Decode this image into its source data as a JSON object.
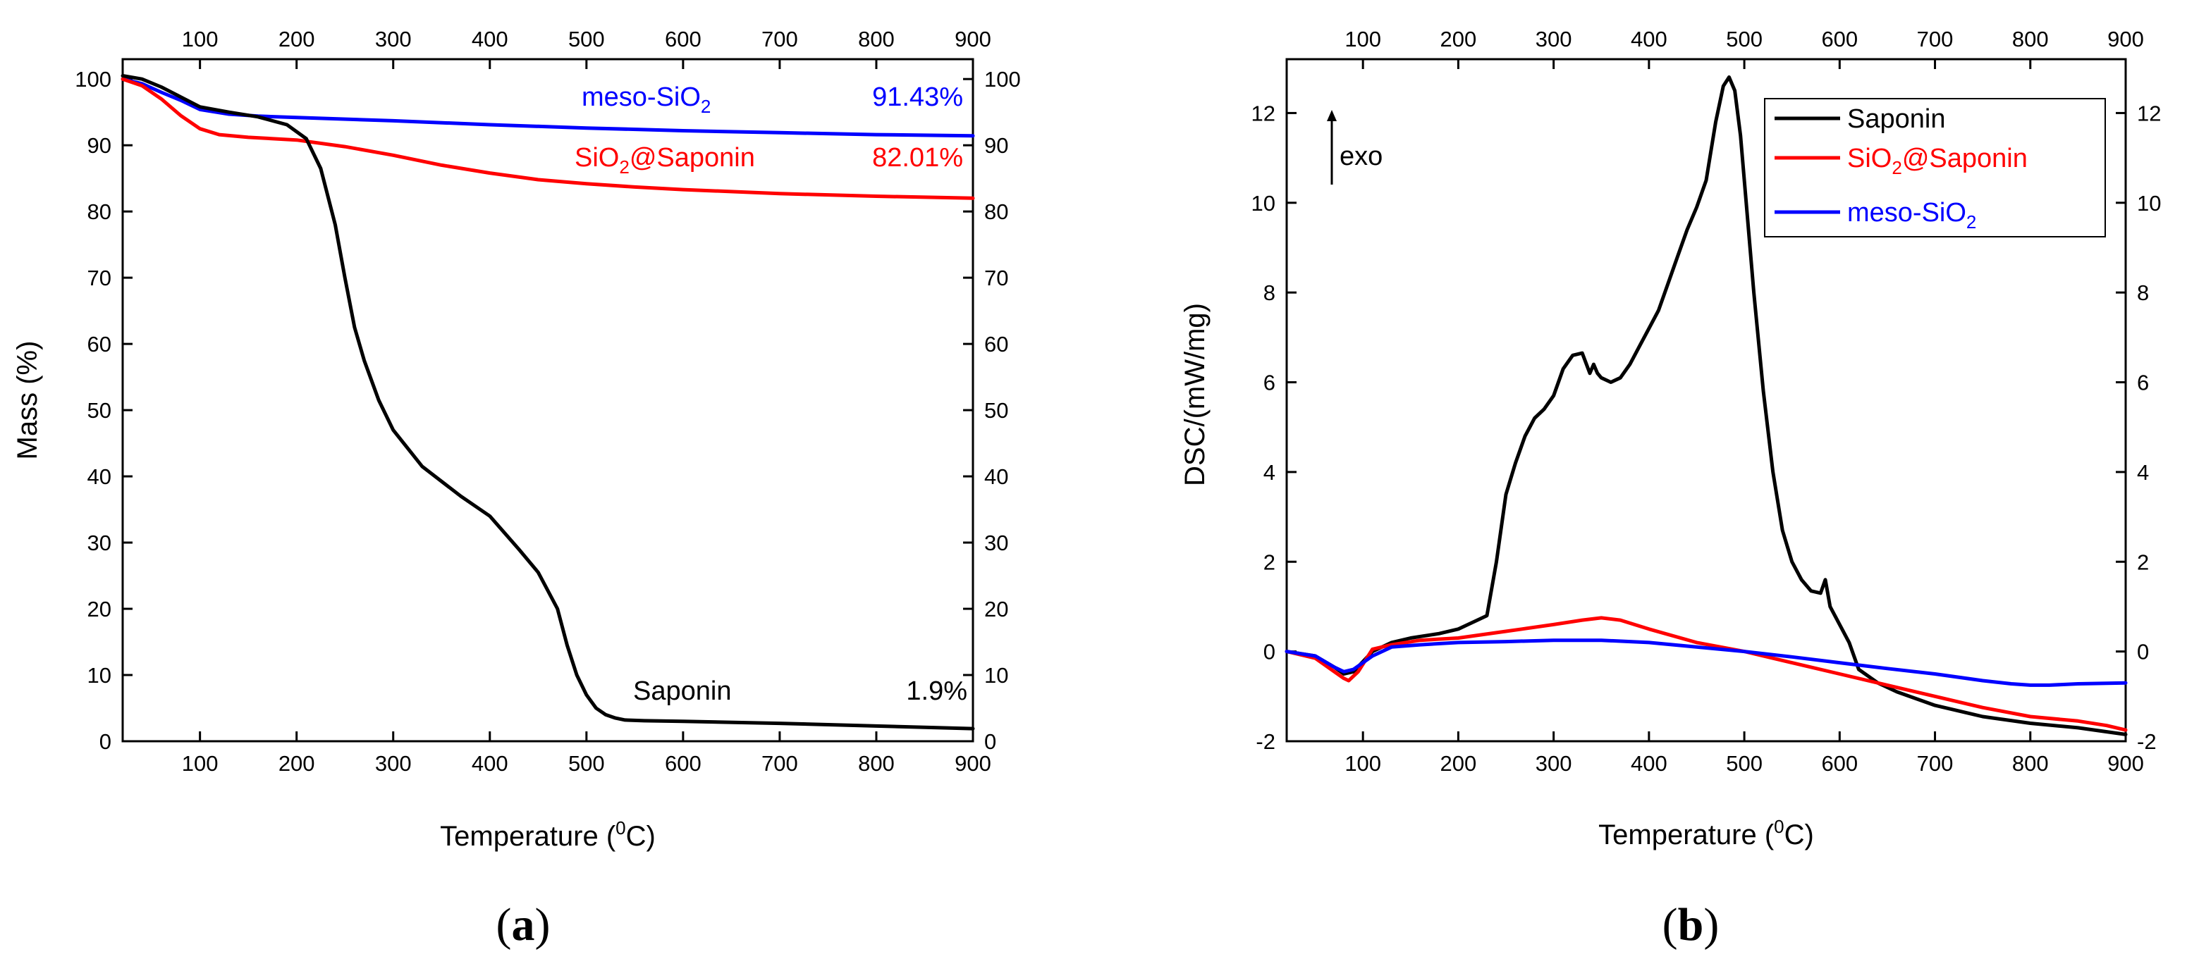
{
  "chart_data": [
    {
      "type": "line",
      "panel_label": "(a)",
      "title": "",
      "xlabel": "Temperature (°C)",
      "ylabel": "Mass (%)",
      "xlim": [
        20,
        900
      ],
      "ylim": [
        0,
        103
      ],
      "x_ticks": [
        100,
        200,
        300,
        400,
        500,
        600,
        700,
        800,
        900
      ],
      "y_ticks": [
        0,
        10,
        20,
        30,
        40,
        50,
        60,
        70,
        80,
        90,
        100
      ],
      "grid": false,
      "series": [
        {
          "name": "meso-SiO2",
          "color": "#0000ff",
          "x": [
            20,
            40,
            60,
            80,
            100,
            130,
            160,
            200,
            300,
            400,
            500,
            600,
            700,
            800,
            900
          ],
          "y": [
            100,
            99.3,
            98.0,
            96.8,
            95.4,
            94.7,
            94.4,
            94.2,
            93.7,
            93.1,
            92.6,
            92.2,
            91.9,
            91.6,
            91.43
          ]
        },
        {
          "name": "SiO2@Saponin",
          "color": "#ff0000",
          "x": [
            20,
            40,
            60,
            80,
            100,
            120,
            150,
            200,
            250,
            300,
            350,
            400,
            450,
            500,
            550,
            600,
            700,
            800,
            900
          ],
          "y": [
            100,
            99.0,
            97.0,
            94.5,
            92.5,
            91.6,
            91.2,
            90.8,
            89.8,
            88.5,
            87.0,
            85.8,
            84.8,
            84.2,
            83.7,
            83.3,
            82.7,
            82.3,
            82.01
          ]
        },
        {
          "name": "Saponin",
          "color": "#000000",
          "x": [
            20,
            40,
            60,
            80,
            100,
            130,
            160,
            190,
            210,
            225,
            240,
            250,
            260,
            270,
            285,
            300,
            330,
            370,
            400,
            430,
            450,
            470,
            480,
            490,
            500,
            510,
            520,
            530,
            540,
            560,
            600,
            700,
            800,
            900
          ],
          "y": [
            100.5,
            100,
            98.8,
            97.3,
            95.8,
            95.0,
            94.3,
            93.1,
            91.0,
            86.5,
            78.0,
            70.0,
            62.5,
            57.5,
            51.5,
            47.0,
            41.5,
            37.0,
            34.0,
            29.0,
            25.5,
            20.0,
            14.5,
            10.0,
            7.0,
            5.0,
            4.0,
            3.5,
            3.2,
            3.1,
            3.0,
            2.7,
            2.3,
            1.9
          ]
        }
      ],
      "annotations": [
        {
          "label": "meso-SiO",
          "subscript": "2",
          "value": "91.43%",
          "color": "#0000ff"
        },
        {
          "label": "SiO",
          "subscript": "2",
          "label_rest": "@Saponin",
          "value": "82.01%",
          "color": "#ff0000"
        },
        {
          "label": "Saponin",
          "value": "1.9%",
          "color": "#000000"
        }
      ]
    },
    {
      "type": "line",
      "panel_label": "(b)",
      "title": "",
      "xlabel": "Temperature (°C)",
      "ylabel": "DSC/(mW/mg)",
      "xlim": [
        20,
        900
      ],
      "ylim": [
        -2,
        13.2
      ],
      "x_ticks": [
        100,
        200,
        300,
        400,
        500,
        600,
        700,
        800,
        900
      ],
      "y_ticks": [
        -2,
        0,
        2,
        4,
        6,
        8,
        10,
        12
      ],
      "grid": false,
      "annotation_text": "exo",
      "legend": [
        {
          "label": "Saponin",
          "color": "#000000"
        },
        {
          "label": "SiO",
          "subscript": "2",
          "label_rest": "@Saponin",
          "color": "#ff0000"
        },
        {
          "label": "meso-SiO",
          "subscript": "2",
          "color": "#0000ff"
        }
      ],
      "series": [
        {
          "name": "Saponin",
          "color": "#000000",
          "x": [
            20,
            50,
            70,
            80,
            90,
            110,
            130,
            150,
            180,
            200,
            220,
            230,
            240,
            250,
            260,
            270,
            280,
            290,
            300,
            310,
            320,
            330,
            338,
            342,
            346,
            350,
            360,
            370,
            380,
            390,
            400,
            410,
            420,
            430,
            440,
            450,
            460,
            470,
            478,
            484,
            490,
            496,
            500,
            510,
            520,
            530,
            540,
            550,
            560,
            570,
            580,
            585,
            590,
            600,
            610,
            620,
            640,
            660,
            700,
            750,
            800,
            850,
            900
          ],
          "y": [
            0,
            -0.1,
            -0.35,
            -0.5,
            -0.45,
            0,
            0.2,
            0.3,
            0.4,
            0.5,
            0.7,
            0.8,
            2.0,
            3.5,
            4.2,
            4.8,
            5.2,
            5.4,
            5.7,
            6.3,
            6.6,
            6.65,
            6.2,
            6.4,
            6.2,
            6.1,
            6.0,
            6.1,
            6.4,
            6.8,
            7.2,
            7.6,
            8.2,
            8.8,
            9.4,
            9.9,
            10.5,
            11.8,
            12.6,
            12.8,
            12.5,
            11.5,
            10.5,
            8.0,
            5.8,
            4.0,
            2.7,
            2.0,
            1.6,
            1.35,
            1.3,
            1.6,
            1.0,
            0.6,
            0.2,
            -0.4,
            -0.7,
            -0.9,
            -1.2,
            -1.45,
            -1.6,
            -1.7,
            -1.85
          ]
        },
        {
          "name": "SiO2@Saponin",
          "color": "#ff0000",
          "x": [
            20,
            50,
            70,
            80,
            85,
            95,
            110,
            130,
            160,
            200,
            250,
            300,
            330,
            350,
            370,
            400,
            450,
            500,
            550,
            600,
            650,
            700,
            750,
            800,
            850,
            880,
            900
          ],
          "y": [
            0,
            -0.15,
            -0.45,
            -0.6,
            -0.65,
            -0.45,
            0.05,
            0.15,
            0.25,
            0.3,
            0.45,
            0.6,
            0.7,
            0.75,
            0.7,
            0.5,
            0.2,
            0,
            -0.25,
            -0.5,
            -0.75,
            -1.0,
            -1.25,
            -1.45,
            -1.55,
            -1.65,
            -1.75
          ]
        },
        {
          "name": "meso-SiO2",
          "color": "#0000ff",
          "x": [
            20,
            50,
            70,
            80,
            90,
            110,
            130,
            160,
            200,
            250,
            300,
            350,
            400,
            450,
            500,
            550,
            600,
            650,
            700,
            750,
            780,
            800,
            820,
            850,
            900
          ],
          "y": [
            0,
            -0.1,
            -0.35,
            -0.45,
            -0.4,
            -0.1,
            0.1,
            0.15,
            0.2,
            0.22,
            0.25,
            0.25,
            0.2,
            0.1,
            0,
            -0.12,
            -0.25,
            -0.38,
            -0.5,
            -0.65,
            -0.72,
            -0.75,
            -0.75,
            -0.72,
            -0.7
          ]
        }
      ]
    }
  ]
}
